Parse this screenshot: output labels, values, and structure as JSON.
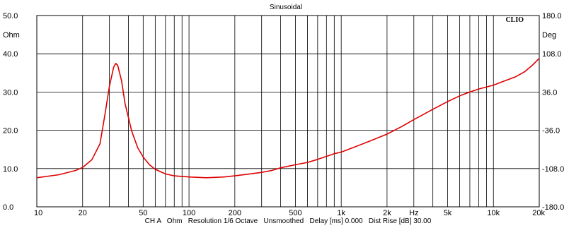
{
  "chart_data": {
    "type": "line",
    "title": "Sinusoidal",
    "logo": "CLIO",
    "footer": "CH A   Ohm   Resolution 1/6 Octave   Unsmoothed   Delay [ms] 0.000   Dist Rise [dB] 30.00",
    "x_scale": "log",
    "xlim": [
      10,
      20000
    ],
    "ylim": [
      0,
      50
    ],
    "ylim_right": [
      -180,
      180
    ],
    "x_ticks": [
      {
        "v": 10,
        "label": "10"
      },
      {
        "v": 20,
        "label": "20"
      },
      {
        "v": 50,
        "label": "50"
      },
      {
        "v": 100,
        "label": "100"
      },
      {
        "v": 200,
        "label": "200"
      },
      {
        "v": 500,
        "label": "500"
      },
      {
        "v": 1000,
        "label": "1k"
      },
      {
        "v": 2000,
        "label": "2k"
      },
      {
        "v": 5000,
        "label": "5k"
      },
      {
        "v": 10000,
        "label": "10k"
      },
      {
        "v": 20000,
        "label": "20k"
      }
    ],
    "x_unit_label": "Hz",
    "x_unit_at": 3000,
    "y_left_ticks": [
      {
        "v": 50,
        "label": "50.0"
      },
      {
        "v": 45,
        "label": "Ohm"
      },
      {
        "v": 40,
        "label": "40.0"
      },
      {
        "v": 30,
        "label": "30.0"
      },
      {
        "v": 20,
        "label": "20.0"
      },
      {
        "v": 10,
        "label": "10.0"
      },
      {
        "v": 0,
        "label": "0.0"
      }
    ],
    "y_right_ticks": [
      {
        "v": 180,
        "label": "180.0"
      },
      {
        "v": 144,
        "label": "Deg"
      },
      {
        "v": 108,
        "label": "108.0"
      },
      {
        "v": 36,
        "label": "36.0"
      },
      {
        "v": -36,
        "label": "-36.0"
      },
      {
        "v": -108,
        "label": "-108.0"
      },
      {
        "v": -180,
        "label": "-180.0"
      }
    ],
    "grid": true,
    "series": [
      {
        "color": "#e00000",
        "x": [
          10,
          14,
          18,
          20,
          23,
          26,
          28,
          30,
          32,
          33,
          34,
          36,
          38,
          42,
          46,
          50,
          55,
          60,
          70,
          80,
          100,
          130,
          170,
          200,
          250,
          300,
          350,
          400,
          500,
          600,
          700,
          800,
          900,
          1000,
          1200,
          1500,
          2000,
          2500,
          3000,
          4000,
          5000,
          6000,
          7000,
          8000,
          10000,
          12000,
          14000,
          16000,
          18000,
          20000
        ],
        "y": [
          7.6,
          8.4,
          9.5,
          10.3,
          12.3,
          16.5,
          24,
          31.5,
          36.5,
          37.5,
          37,
          33,
          27,
          19.8,
          15.5,
          13.0,
          11.0,
          9.8,
          8.6,
          8.1,
          7.8,
          7.6,
          7.8,
          8.1,
          8.6,
          9.0,
          9.5,
          10.2,
          11.0,
          11.6,
          12.4,
          13.2,
          13.9,
          14.3,
          15.5,
          17.0,
          19.0,
          21.0,
          22.8,
          25.5,
          27.5,
          29.0,
          30.0,
          30.8,
          31.8,
          33.0,
          34.0,
          35.3,
          37.0,
          38.8
        ]
      }
    ]
  }
}
